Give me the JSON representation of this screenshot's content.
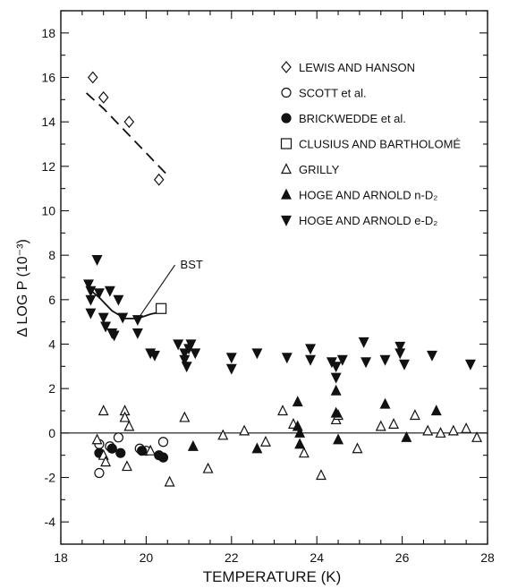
{
  "chart_data": {
    "type": "scatter",
    "xlabel": "TEMPERATURE (K)",
    "ylabel": "Δ LOG P (10⁻³)",
    "xlim": [
      18,
      28
    ],
    "ylim": [
      -5,
      19
    ],
    "x_ticks": [
      "18",
      "20",
      "22",
      "24",
      "26",
      "28"
    ],
    "y_ticks": [
      "-4",
      "-2",
      "0",
      "2",
      "4",
      "6",
      "8",
      "10",
      "12",
      "14",
      "16",
      "18"
    ],
    "zero_line": true,
    "grid": false,
    "legend_position": "top-right",
    "series": [
      {
        "name": "LEWIS AND HANSON",
        "marker": "diamond-open",
        "points": [
          [
            18.75,
            16.0
          ],
          [
            19.0,
            15.1
          ],
          [
            19.6,
            14.0
          ],
          [
            20.3,
            11.4
          ]
        ]
      },
      {
        "name": "SCOTT et al.",
        "marker": "circle-open",
        "points": [
          [
            18.9,
            -0.5
          ],
          [
            18.9,
            -1.8
          ],
          [
            19.15,
            -0.6
          ],
          [
            19.35,
            -0.2
          ],
          [
            19.85,
            -0.7
          ],
          [
            20.0,
            -0.8
          ],
          [
            20.4,
            -0.4
          ]
        ]
      },
      {
        "name": "BRICKWEDDE et al.",
        "marker": "circle-filled",
        "points": [
          [
            18.9,
            -0.9
          ],
          [
            19.2,
            -0.7
          ],
          [
            19.4,
            -0.9
          ],
          [
            19.9,
            -0.8
          ],
          [
            20.3,
            -1.0
          ],
          [
            20.4,
            -1.1
          ]
        ]
      },
      {
        "name": "CLUSIUS AND BARTHOLOMÉ",
        "marker": "square-open",
        "points": [
          [
            20.35,
            5.6
          ]
        ]
      },
      {
        "name": "GRILLY",
        "marker": "triangle-open",
        "points": [
          [
            18.85,
            -0.3
          ],
          [
            19.0,
            1.0
          ],
          [
            19.0,
            -1.0
          ],
          [
            19.05,
            -1.3
          ],
          [
            19.5,
            1.0
          ],
          [
            19.5,
            0.7
          ],
          [
            19.55,
            -1.5
          ],
          [
            19.6,
            0.3
          ],
          [
            20.1,
            -0.8
          ],
          [
            20.55,
            -2.2
          ],
          [
            20.9,
            0.7
          ],
          [
            21.45,
            -1.6
          ],
          [
            21.8,
            -0.1
          ],
          [
            22.3,
            0.1
          ],
          [
            22.8,
            -0.4
          ],
          [
            23.2,
            1.0
          ],
          [
            23.45,
            0.4
          ],
          [
            23.7,
            -0.9
          ],
          [
            24.1,
            -1.9
          ],
          [
            24.45,
            0.6
          ],
          [
            24.5,
            0.8
          ],
          [
            24.95,
            -0.7
          ],
          [
            25.5,
            0.3
          ],
          [
            25.8,
            0.4
          ],
          [
            26.3,
            0.8
          ],
          [
            26.6,
            0.1
          ],
          [
            26.9,
            0.0
          ],
          [
            27.2,
            0.1
          ],
          [
            27.5,
            0.2
          ],
          [
            27.75,
            -0.2
          ]
        ]
      },
      {
        "name": "HOGE AND ARNOLD n-D₂",
        "marker": "triangle-filled",
        "points": [
          [
            21.1,
            -0.6
          ],
          [
            22.6,
            -0.7
          ],
          [
            23.55,
            1.4
          ],
          [
            23.55,
            0.3
          ],
          [
            23.6,
            0.0
          ],
          [
            23.6,
            -0.5
          ],
          [
            24.45,
            1.9
          ],
          [
            24.45,
            0.9
          ],
          [
            24.5,
            -0.3
          ],
          [
            25.6,
            1.3
          ],
          [
            26.1,
            -0.2
          ],
          [
            26.8,
            1.0
          ]
        ]
      },
      {
        "name": "HOGE AND ARNOLD e-D₂",
        "marker": "triangle-down-filled",
        "points": [
          [
            18.65,
            6.7
          ],
          [
            18.7,
            6.4
          ],
          [
            18.7,
            6.0
          ],
          [
            18.7,
            5.4
          ],
          [
            18.85,
            7.8
          ],
          [
            18.9,
            6.3
          ],
          [
            19.0,
            5.2
          ],
          [
            19.05,
            4.8
          ],
          [
            19.15,
            6.4
          ],
          [
            19.2,
            4.5
          ],
          [
            19.25,
            4.4
          ],
          [
            19.35,
            6.0
          ],
          [
            19.45,
            5.2
          ],
          [
            19.8,
            5.1
          ],
          [
            19.8,
            4.5
          ],
          [
            20.1,
            3.6
          ],
          [
            20.2,
            3.5
          ],
          [
            20.75,
            4.0
          ],
          [
            20.9,
            3.6
          ],
          [
            20.9,
            3.3
          ],
          [
            20.95,
            3.0
          ],
          [
            21.0,
            3.8
          ],
          [
            21.05,
            4.0
          ],
          [
            21.15,
            3.6
          ],
          [
            22.0,
            3.4
          ],
          [
            22.0,
            2.9
          ],
          [
            22.6,
            3.6
          ],
          [
            23.3,
            3.4
          ],
          [
            23.85,
            3.3
          ],
          [
            23.85,
            3.8
          ],
          [
            24.35,
            3.2
          ],
          [
            24.45,
            3.0
          ],
          [
            24.45,
            2.5
          ],
          [
            24.6,
            3.3
          ],
          [
            25.1,
            4.1
          ],
          [
            25.15,
            3.2
          ],
          [
            25.6,
            3.3
          ],
          [
            25.95,
            3.9
          ],
          [
            25.95,
            3.6
          ],
          [
            26.05,
            3.1
          ],
          [
            26.7,
            3.5
          ],
          [
            27.6,
            3.1
          ]
        ]
      }
    ],
    "curves": [
      {
        "style": "dashed",
        "points": [
          [
            18.6,
            15.3
          ],
          [
            19.0,
            14.6
          ],
          [
            19.5,
            13.6
          ],
          [
            20.0,
            12.6
          ],
          [
            20.55,
            11.5
          ]
        ]
      },
      {
        "style": "solid",
        "label": "BST",
        "points": [
          [
            18.65,
            6.5
          ],
          [
            18.9,
            6.1
          ],
          [
            19.2,
            5.5
          ],
          [
            19.5,
            5.15
          ],
          [
            19.8,
            5.15
          ],
          [
            20.1,
            5.35
          ],
          [
            20.35,
            5.45
          ]
        ]
      }
    ],
    "annotations": [
      {
        "text": "BST",
        "at": [
          20.8,
          7.4
        ],
        "points_to": [
          19.8,
          5.15
        ]
      }
    ]
  }
}
